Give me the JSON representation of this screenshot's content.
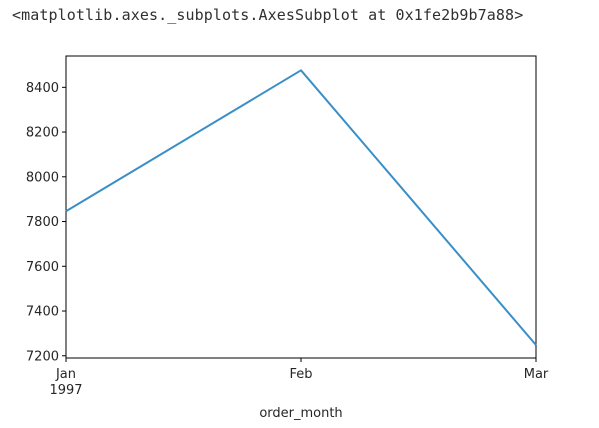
{
  "output_repr": "<matplotlib.axes._subplots.AxesSubplot at 0x1fe2b9b7a88>",
  "chart_data": {
    "type": "line",
    "x": [
      "1997-01",
      "1997-02",
      "1997-03"
    ],
    "categories": [
      "Jan\n1997",
      "Feb",
      "Mar"
    ],
    "series": [
      {
        "values": [
          7846,
          8476,
          7248
        ],
        "color": "#3a8fc7"
      }
    ],
    "title": "",
    "xlabel": "order_month",
    "ylabel": "",
    "ylim": [
      7190,
      8540
    ],
    "yticks": [
      7200,
      7400,
      7600,
      7800,
      8000,
      8200,
      8400
    ],
    "xtick_labels": [
      {
        "main": "Jan",
        "sub": "1997"
      },
      {
        "main": "Feb",
        "sub": ""
      },
      {
        "main": "Mar",
        "sub": ""
      }
    ],
    "grid": false,
    "legend": "none"
  }
}
